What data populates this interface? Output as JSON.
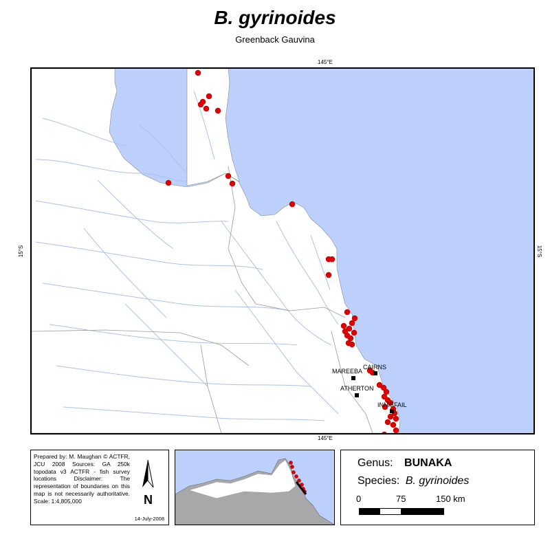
{
  "title": "B. gyrinoides",
  "subtitle": "Greenback Gauvina",
  "graticule": {
    "lon_top": "145°E",
    "lon_bottom": "145°E",
    "lat_left": "15°S",
    "lat_right": "15°S"
  },
  "towns": [
    {
      "name": "CAIRNS"
    },
    {
      "name": "MAREEBA"
    },
    {
      "name": "ATHERTON"
    },
    {
      "name": "INNISFAIL"
    }
  ],
  "info": {
    "text": "Prepared by: M. Maughan © ACTFR, JCU 2008 Sources: GA 250k topodata v3 ACTFR - fish survey locations Disclaimer: The representation of boundaries on this map is not necessarily authoritative. Scale: 1:4,805,000",
    "date": "14-July-2008"
  },
  "legend": {
    "genus_label": "Genus:",
    "genus_value": "BUNAKA",
    "species_label": "Species:",
    "species_value": "B. gyrinoides",
    "scale_ticks": [
      "0",
      "75",
      "150 km"
    ]
  },
  "colors": {
    "sea": "#bdd0fb",
    "land": "#ffffff",
    "river": "#a9c1ee",
    "boundary": "#9a9a9a",
    "record": "#e00000",
    "inset_land": "#a8a8a8"
  }
}
